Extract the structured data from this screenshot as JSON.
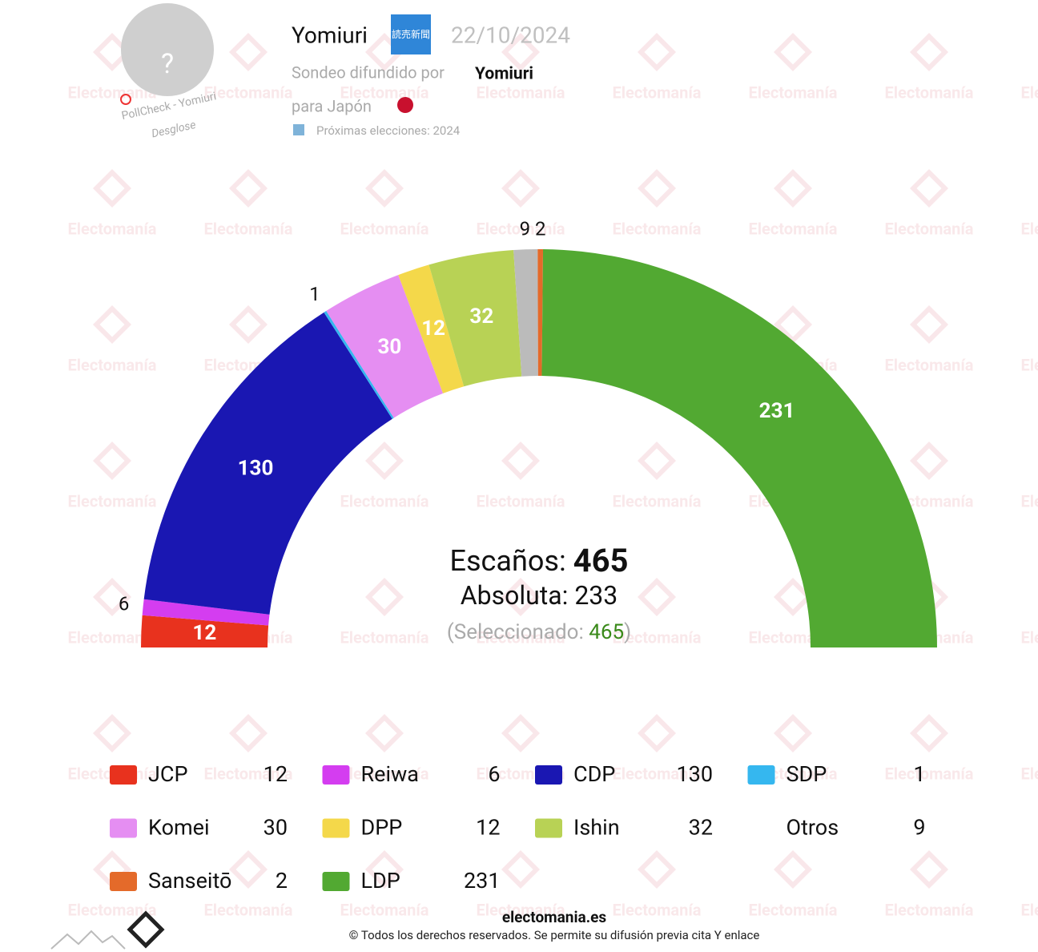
{
  "header": {
    "pollster": "Yomiuri",
    "logo_text": "読売新聞",
    "date": "22/10/2024",
    "spread_by_label": "Sondeo difundido por",
    "spread_by": "Yomiuri",
    "country": "para Japón",
    "next_elections": "Próximas elecciones: 2024",
    "avatar": "?",
    "pollcheck": "PollCheck - Yomiuri",
    "breakdown": "Desglose"
  },
  "watermark": "Electomanía",
  "chart_data": {
    "type": "parliament",
    "seats_label": "Escaños:",
    "seats_total": 465,
    "majority_label": "Absoluta:",
    "majority": 233,
    "selected_label": "(Seleccionado:",
    "selected": 465,
    "selected_close": ")",
    "series": [
      {
        "name": "JCP",
        "color": "#e8321e",
        "values": [
          12
        ]
      },
      {
        "name": "Reiwa",
        "color": "#d43df0",
        "values": [
          6
        ]
      },
      {
        "name": "CDP",
        "color": "#1a17b2",
        "values": [
          130
        ]
      },
      {
        "name": "SDP",
        "color": "#35b7ef",
        "values": [
          1
        ]
      },
      {
        "name": "Komei",
        "color": "#e58ef2",
        "values": [
          30
        ]
      },
      {
        "name": "DPP",
        "color": "#f4d84a",
        "values": [
          12
        ]
      },
      {
        "name": "Ishin",
        "color": "#b8d255",
        "values": [
          32
        ]
      },
      {
        "name": "Otros",
        "color": "#bbbbbb",
        "values": [
          9
        ]
      },
      {
        "name": "Sanseitō",
        "color": "#e46a2a",
        "values": [
          2
        ]
      },
      {
        "name": "LDP",
        "color": "#52a932",
        "values": [
          231
        ]
      }
    ]
  },
  "footer": {
    "site": "electomania.es",
    "rights": "© Todos los derechos reservados. Se permite su difusión previa cita Y enlace"
  }
}
